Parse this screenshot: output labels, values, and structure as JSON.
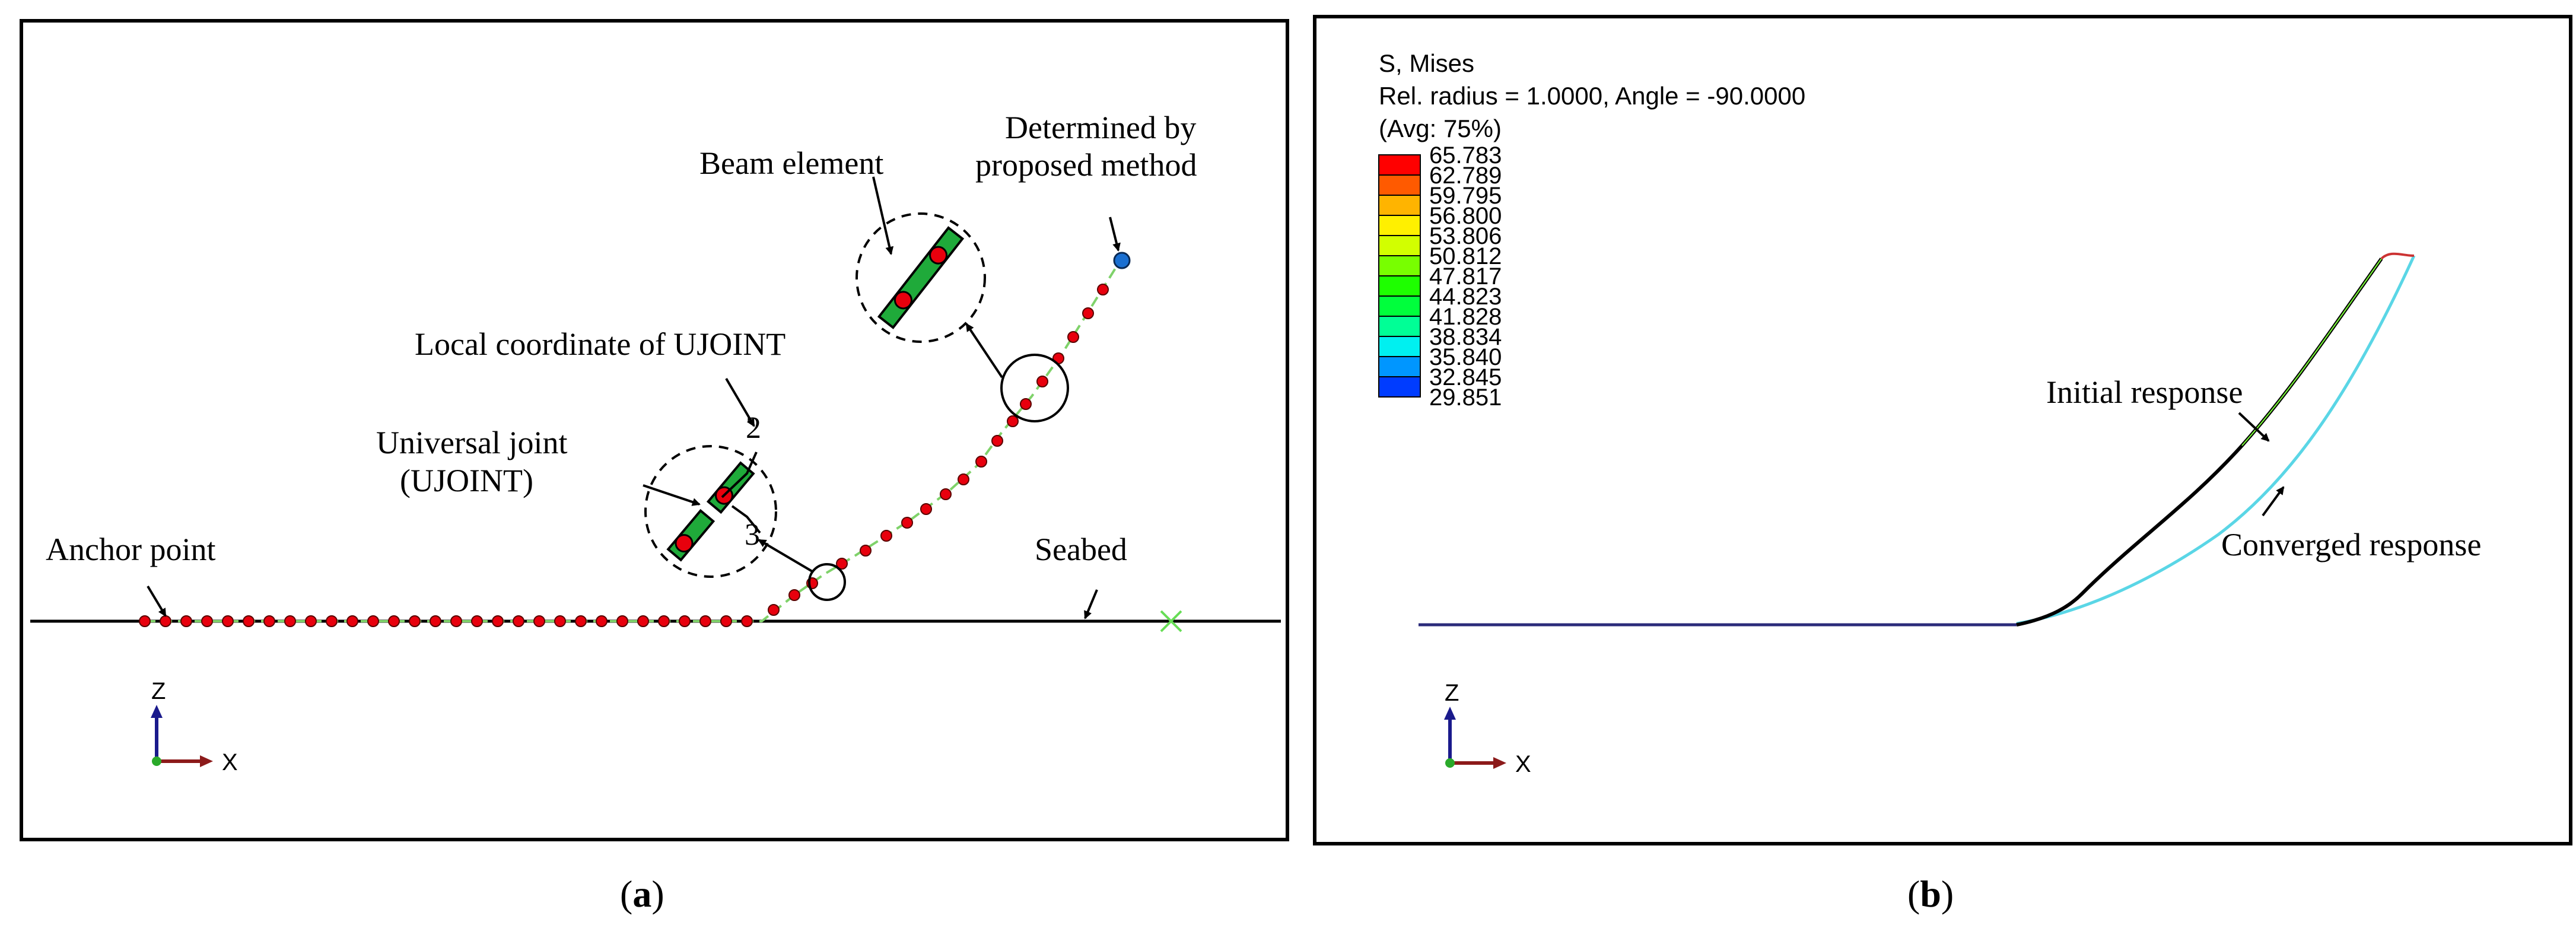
{
  "panel_a": {
    "caption_open": "(",
    "caption_letter": "a",
    "caption_close": ")",
    "labels": {
      "determined_line1": "Determined by",
      "determined_line2": "proposed method",
      "beam_element": "Beam element",
      "local_coordinate": "Local coordinate of UJOINT",
      "universal_joint_line1": "Universal joint",
      "universal_joint_line2": "(UJOINT)",
      "anchor_point": "Anchor point",
      "seabed": "Seabed",
      "axis_num_2": "2",
      "axis_num_3": "3"
    },
    "triad": {
      "z": "Z",
      "x": "X"
    },
    "colors": {
      "node": "#e8000d",
      "beam": "#1faa3a",
      "top_node": "#1a6fd1",
      "fairlead_mark": "#66dd55",
      "line_dash": "#7fd26a"
    }
  },
  "panel_b": {
    "caption_open": "(",
    "caption_letter": "b",
    "caption_close": ")",
    "legend": {
      "title": "S, Mises",
      "subtitle": "Rel. radius = 1.0000, Angle = -90.0000",
      "avg": "(Avg: 75%)",
      "values": [
        "65.783",
        "62.789",
        "59.795",
        "56.800",
        "53.806",
        "50.812",
        "47.817",
        "44.823",
        "41.828",
        "38.834",
        "35.840",
        "32.845",
        "29.851"
      ],
      "colors": [
        "#ff0000",
        "#ff5a00",
        "#ffb400",
        "#fff000",
        "#d2ff00",
        "#78ff00",
        "#1eff00",
        "#00ff3c",
        "#00ff96",
        "#00f0f0",
        "#0096ff",
        "#003cff",
        "#0000ff"
      ]
    },
    "labels": {
      "initial_response": "Initial response",
      "converged_response": "Converged response"
    },
    "triad": {
      "z": "Z",
      "x": "X"
    }
  }
}
